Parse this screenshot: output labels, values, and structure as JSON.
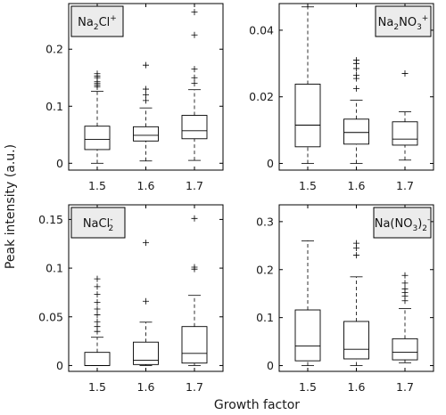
{
  "figure": {
    "ylabel": "Peak intensity (a.u.)",
    "xlabel": "Growth factor"
  },
  "chart_data": [
    {
      "type": "box",
      "label": {
        "base": "Na",
        "sub1": "2",
        "mid": "Cl",
        "sup": "+"
      },
      "categories": [
        "1.5",
        "1.6",
        "1.7"
      ],
      "ylim": [
        -0.012,
        0.28
      ],
      "yticks": [
        0,
        0.1,
        0.2
      ],
      "yticklabels": [
        "0",
        "0.1",
        "0.2"
      ],
      "boxes": [
        {
          "min": 0.0,
          "q1": 0.024,
          "median": 0.042,
          "q3": 0.065,
          "whisker_high": 0.126,
          "outliers": [
            0.134,
            0.137,
            0.14,
            0.143,
            0.15,
            0.153,
            0.157
          ]
        },
        {
          "min": 0.004,
          "q1": 0.039,
          "median": 0.049,
          "q3": 0.064,
          "whisker_high": 0.097,
          "outliers": [
            0.11,
            0.12,
            0.13,
            0.172
          ]
        },
        {
          "min": 0.005,
          "q1": 0.043,
          "median": 0.057,
          "q3": 0.084,
          "whisker_high": 0.129,
          "outliers": [
            0.14,
            0.15,
            0.165,
            0.225,
            0.265
          ]
        }
      ]
    },
    {
      "type": "box",
      "label": {
        "base": "Na",
        "sub1": "2",
        "mid": "NO",
        "sub2": "3",
        "sup": "+"
      },
      "categories": [
        "1.5",
        "1.6",
        "1.7"
      ],
      "ylim": [
        -0.002,
        0.048
      ],
      "yticks": [
        0,
        0.02,
        0.04
      ],
      "yticklabels": [
        "0",
        "0.02",
        "0.04"
      ],
      "boxes": [
        {
          "min": 0.0,
          "q1": 0.005,
          "median": 0.0115,
          "q3": 0.0238,
          "whisker_high": 0.047,
          "outliers": []
        },
        {
          "min": 0.0,
          "q1": 0.0058,
          "median": 0.0093,
          "q3": 0.0133,
          "whisker_high": 0.019,
          "outliers": [
            0.0225,
            0.0255,
            0.0265,
            0.0285,
            0.03,
            0.031
          ]
        },
        {
          "min": 0.001,
          "q1": 0.0055,
          "median": 0.0073,
          "q3": 0.0125,
          "whisker_high": 0.0155,
          "outliers": [
            0.027
          ]
        }
      ]
    },
    {
      "type": "box",
      "label": {
        "base": "NaCl",
        "sub1": "2",
        "sup": "-"
      },
      "categories": [
        "1.5",
        "1.6",
        "1.7"
      ],
      "ylim": [
        -0.006,
        0.165
      ],
      "yticks": [
        0,
        0.05,
        0.1,
        0.15
      ],
      "yticklabels": [
        "0",
        "0.05",
        "0.1",
        "0.15"
      ],
      "boxes": [
        {
          "min": 0.0,
          "q1": 0.0,
          "median": 0.0,
          "q3": 0.0135,
          "whisker_high": 0.029,
          "outliers": [
            0.035,
            0.04,
            0.045,
            0.052,
            0.058,
            0.065,
            0.073,
            0.081,
            0.089
          ]
        },
        {
          "min": 0.0,
          "q1": 0.001,
          "median": 0.0055,
          "q3": 0.024,
          "whisker_high": 0.0445,
          "outliers": [
            0.066,
            0.126
          ]
        },
        {
          "min": 0.0,
          "q1": 0.0025,
          "median": 0.0125,
          "q3": 0.04,
          "whisker_high": 0.072,
          "outliers": [
            0.099,
            0.101,
            0.151
          ]
        }
      ]
    },
    {
      "type": "box",
      "label": {
        "base": "Na(NO",
        "sub1": "3",
        "mid": ")",
        "sub2": "2",
        "sup": "-"
      },
      "categories": [
        "1.5",
        "1.6",
        "1.7"
      ],
      "ylim": [
        -0.012,
        0.335
      ],
      "yticks": [
        0,
        0.1,
        0.2,
        0.3
      ],
      "yticklabels": [
        "0",
        "0.1",
        "0.2",
        "0.3"
      ],
      "boxes": [
        {
          "min": 0.0,
          "q1": 0.01,
          "median": 0.041,
          "q3": 0.116,
          "whisker_high": 0.26,
          "outliers": []
        },
        {
          "min": 0.0,
          "q1": 0.014,
          "median": 0.034,
          "q3": 0.092,
          "whisker_high": 0.185,
          "outliers": [
            0.23,
            0.245,
            0.255
          ]
        },
        {
          "min": 0.006,
          "q1": 0.012,
          "median": 0.028,
          "q3": 0.056,
          "whisker_high": 0.119,
          "outliers": [
            0.135,
            0.145,
            0.152,
            0.16,
            0.172,
            0.188
          ]
        }
      ]
    }
  ]
}
